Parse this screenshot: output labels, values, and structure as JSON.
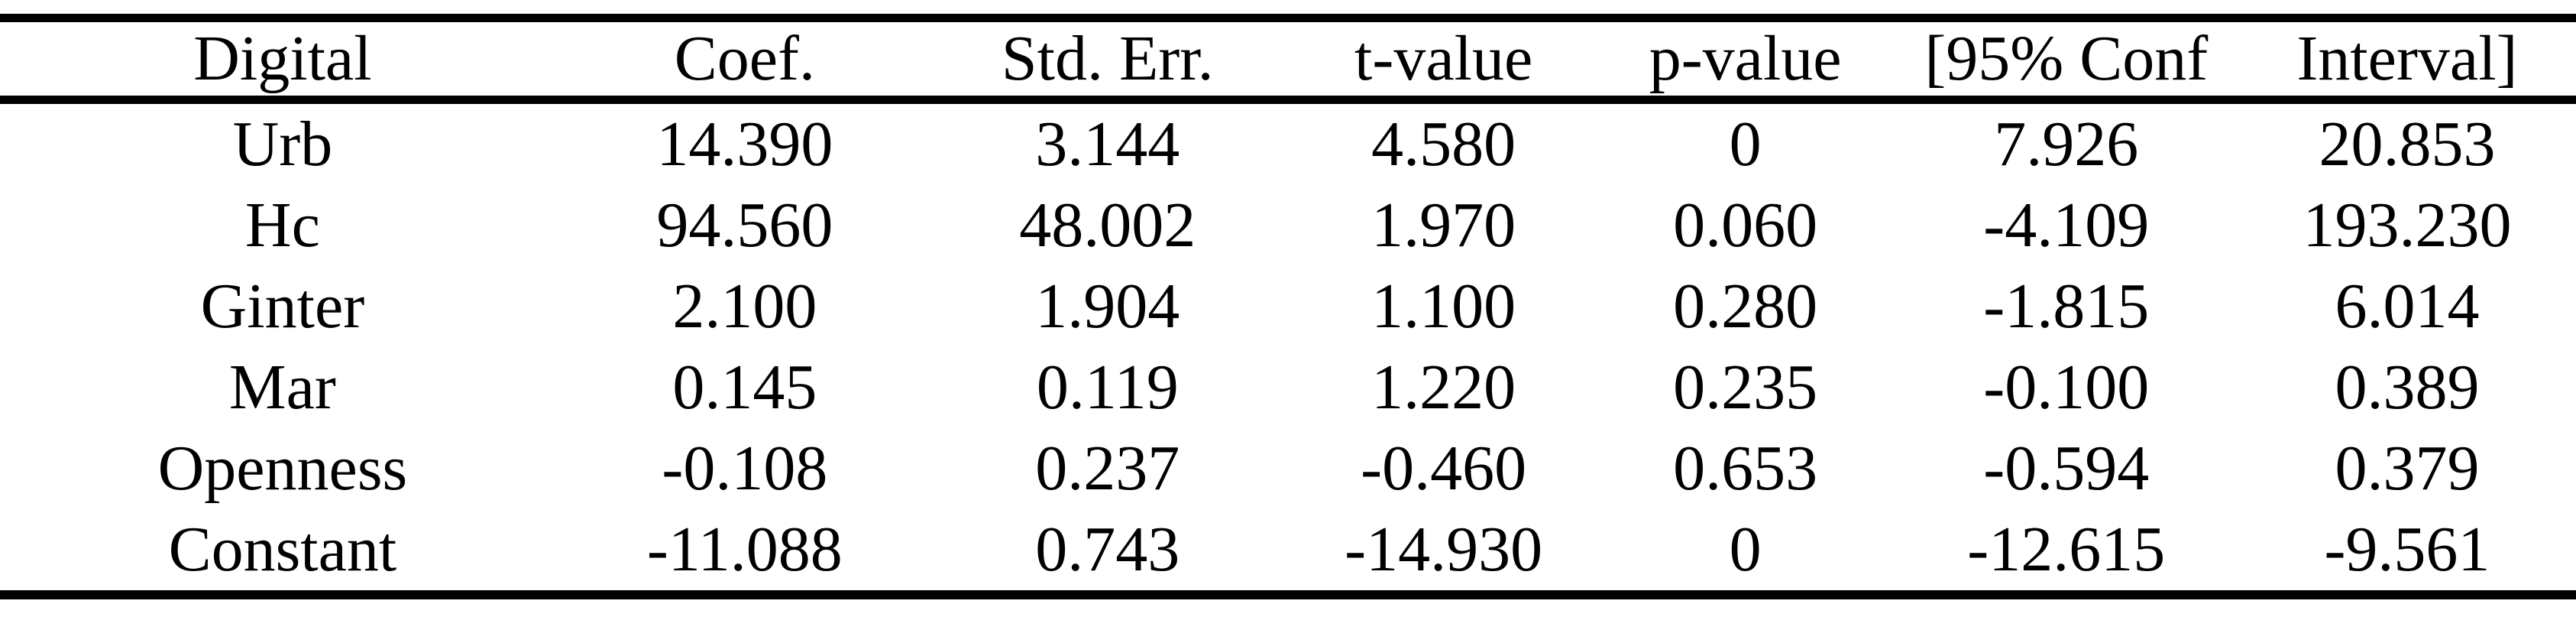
{
  "page": {
    "background": "#ffffff",
    "text_color": "#000000",
    "rule_color": "#000000"
  },
  "table": {
    "columns": [
      "Digital",
      "Coef.",
      "Std. Err.",
      "t-value",
      "p-value",
      "[95% Conf",
      "Interval]"
    ],
    "rows": [
      [
        "Urb",
        "14.390",
        "3.144",
        "4.580",
        "0",
        "7.926",
        "20.853"
      ],
      [
        "Hc",
        "94.560",
        "48.002",
        "1.970",
        "0.060",
        "-4.109",
        "193.230"
      ],
      [
        "Ginter",
        "2.100",
        "1.904",
        "1.100",
        "0.280",
        "-1.815",
        "6.014"
      ],
      [
        "Mar",
        "0.145",
        "0.119",
        "1.220",
        "0.235",
        "-0.100",
        "0.389"
      ],
      [
        "Openness",
        "-0.108",
        "0.237",
        "-0.460",
        "0.653",
        "-0.594",
        "0.379"
      ],
      [
        "Constant",
        "-11.088",
        "0.743",
        "-14.930",
        "0",
        "-12.615",
        "-9.561"
      ]
    ]
  }
}
